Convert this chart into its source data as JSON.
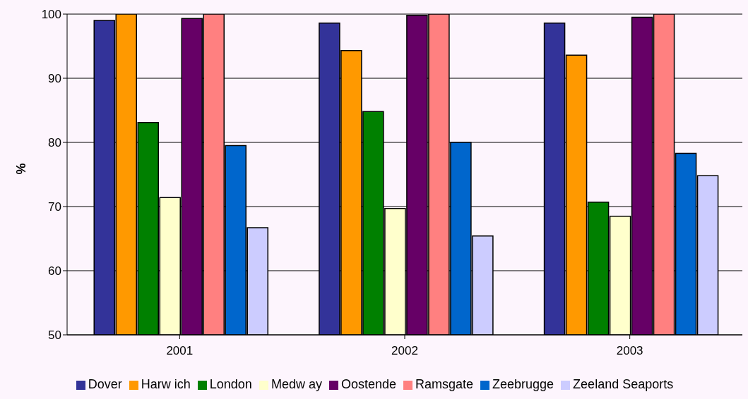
{
  "chart_data": {
    "type": "bar",
    "ylabel": "%",
    "categories": [
      "2001",
      "2002",
      "2003"
    ],
    "series": [
      {
        "name": "Dover",
        "color": "#333399",
        "values": [
          99.0,
          98.6,
          98.6
        ]
      },
      {
        "name": "Harw ich",
        "color": "#ff9900",
        "values": [
          100,
          94.3,
          93.6
        ]
      },
      {
        "name": "London",
        "color": "#008000",
        "values": [
          83.1,
          84.8,
          70.7
        ]
      },
      {
        "name": "Medw ay",
        "color": "#ffffcc",
        "values": [
          71.4,
          69.7,
          68.5
        ]
      },
      {
        "name": "Oostende",
        "color": "#660066",
        "values": [
          99.3,
          99.8,
          99.5
        ]
      },
      {
        "name": "Ramsgate",
        "color": "#ff8080",
        "values": [
          100,
          100,
          100
        ]
      },
      {
        "name": "Zeebrugge",
        "color": "#0066cc",
        "values": [
          79.5,
          80.0,
          78.3
        ]
      },
      {
        "name": "Zeeland Seaports",
        "color": "#ccccff",
        "values": [
          66.7,
          65.4,
          74.8
        ]
      }
    ],
    "ylim": [
      50,
      100
    ],
    "yticks": [
      50,
      60,
      70,
      80,
      90,
      100
    ],
    "grid": "y",
    "legend": "bottom"
  }
}
